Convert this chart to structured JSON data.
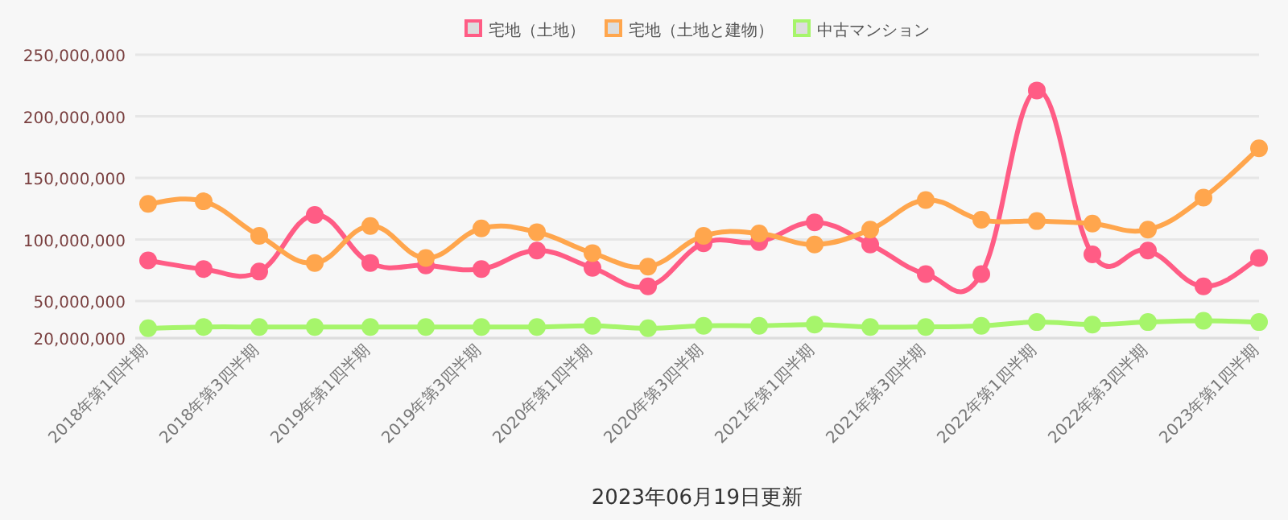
{
  "chart_data": {
    "type": "line",
    "categories": [
      "2018年第1四半期",
      null,
      "2018年第3四半期",
      null,
      "2019年第1四半期",
      null,
      "2019年第3四半期",
      null,
      "2020年第1四半期",
      null,
      "2020年第3四半期",
      null,
      "2021年第1四半期",
      null,
      "2021年第3四半期",
      null,
      "2022年第1四半期",
      null,
      "2022年第3四半期",
      null,
      "2023年第1四半期"
    ],
    "series": [
      {
        "name": "宅地（土地）",
        "color": "#ff5c85",
        "values": [
          83000000,
          76000000,
          74000000,
          120000000,
          81000000,
          79000000,
          76000000,
          91000000,
          77000000,
          62000000,
          97000000,
          98000000,
          114000000,
          96000000,
          72000000,
          72000000,
          221000000,
          88000000,
          91000000,
          62000000,
          85000000
        ]
      },
      {
        "name": "宅地（土地と建物）",
        "color": "#ffa64d",
        "values": [
          129000000,
          131000000,
          103000000,
          81000000,
          111000000,
          85000000,
          109000000,
          106000000,
          89000000,
          78000000,
          103000000,
          105000000,
          96000000,
          108000000,
          132000000,
          116000000,
          115000000,
          113000000,
          108000000,
          134000000,
          174000000
        ]
      },
      {
        "name": "中古マンション",
        "color": "#a6f56b",
        "values": [
          28000000,
          29000000,
          29000000,
          29000000,
          29000000,
          29000000,
          29000000,
          29000000,
          30000000,
          28000000,
          30000000,
          30000000,
          31000000,
          29000000,
          29000000,
          30000000,
          33000000,
          31000000,
          33000000,
          34000000,
          33000000
        ]
      }
    ],
    "ylim": [
      20000000,
      250000000
    ],
    "yticks": [
      {
        "value": 20000000,
        "label": "20,000,000"
      },
      {
        "value": 50000000,
        "label": "50,000,000"
      },
      {
        "value": 100000000,
        "label": "100,000,000"
      },
      {
        "value": 150000000,
        "label": "150,000,000"
      },
      {
        "value": 200000000,
        "label": "200,000,000"
      },
      {
        "value": 250000000,
        "label": "250,000,000"
      }
    ],
    "grid": "y",
    "legend": "top",
    "marker": "circle",
    "line_style": "solid",
    "annotations": [
      "2023年06月19日更新"
    ]
  }
}
